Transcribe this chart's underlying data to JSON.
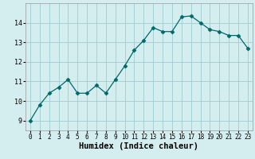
{
  "x": [
    0,
    1,
    2,
    3,
    4,
    5,
    6,
    7,
    8,
    9,
    10,
    11,
    12,
    13,
    14,
    15,
    16,
    17,
    18,
    19,
    20,
    21,
    22,
    23
  ],
  "y": [
    9.0,
    9.8,
    10.4,
    10.7,
    11.1,
    10.4,
    10.4,
    10.8,
    10.4,
    11.1,
    11.8,
    12.6,
    13.1,
    13.75,
    13.55,
    13.55,
    14.3,
    14.35,
    14.0,
    13.65,
    13.55,
    13.35,
    13.35,
    12.7
  ],
  "line_color": "#006868",
  "marker": "D",
  "marker_size": 2.5,
  "bg_color": "#d4eef0",
  "grid_color": "#a0ccd0",
  "xlabel": "Humidex (Indice chaleur)",
  "xlabel_fontsize": 7.5,
  "xlim": [
    -0.5,
    23.5
  ],
  "ylim": [
    8.5,
    15.0
  ],
  "yticks": [
    9,
    10,
    11,
    12,
    13,
    14
  ],
  "xtick_labels": [
    "0",
    "1",
    "2",
    "3",
    "4",
    "5",
    "6",
    "7",
    "8",
    "9",
    "10",
    "11",
    "12",
    "13",
    "14",
    "15",
    "16",
    "17",
    "18",
    "19",
    "20",
    "21",
    "22",
    "23"
  ]
}
